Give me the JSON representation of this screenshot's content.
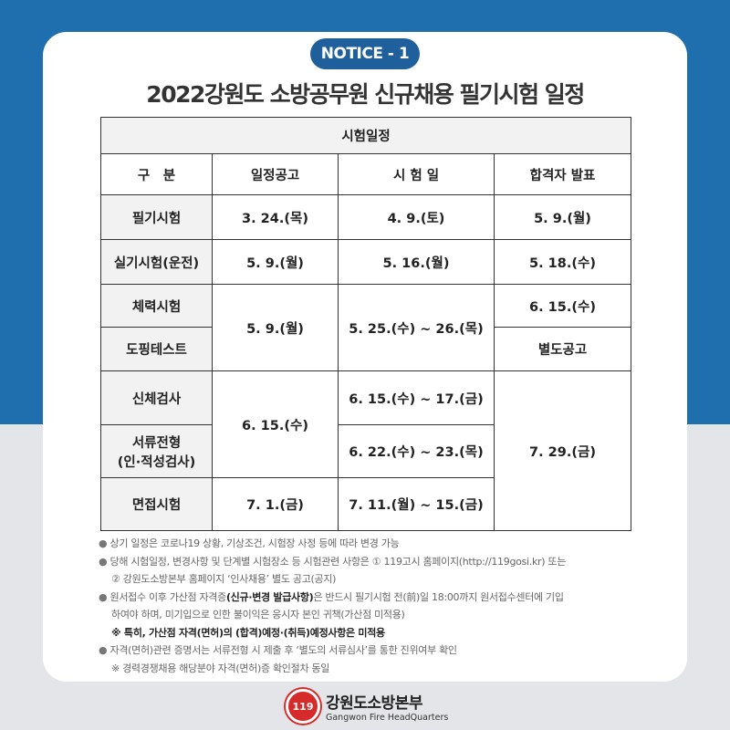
{
  "badge": "NOTICE - 1",
  "title": "2022강원도 소방공무원 신규채용 필기시험 일정",
  "table": {
    "caption": "시험일정",
    "headers": [
      "구　분",
      "일정공고",
      "시 험 일",
      "합격자 발표"
    ],
    "rows": {
      "written": [
        "필기시험",
        "3. 24.(목)",
        "4. 9.(토)",
        "5. 9.(월)"
      ],
      "practical": [
        "실기시험(운전)",
        "5. 9.(월)",
        "5. 16.(월)",
        "5. 18.(수)"
      ],
      "fitness": [
        "체력시험",
        "5. 9.(월)",
        "5. 25.(수) ~ 26.(목)",
        "6. 15.(수)"
      ],
      "doping": [
        "도핑테스트",
        "별도공고"
      ],
      "physical": [
        "신체검사",
        "6. 15.(수)",
        "6. 15.(수) ~ 17.(금)",
        "7. 29.(금)"
      ],
      "documents": [
        "서류전형",
        "(인·적성검사)",
        "6. 22.(수) ~ 23.(목)"
      ],
      "interview": [
        "면접시험",
        "7. 1.(금)",
        "7. 11.(월) ~ 15.(금)"
      ]
    }
  },
  "notes": {
    "n1": "상기 일정은 코로나19 상황, 기상조건, 시험장 사정 등에 따라 변경 가능",
    "n2": "당해 시험일정, 변경사항 및 단계별 시험장소 등 시험관련 사항은 ① 119고시 홈페이지(http://119gosi.kr) 또는",
    "n2b": "② 강원도소방본부 홈페이지 ‘인사채용’ 별도 공고(공지)",
    "n3a": "원서접수 이후 가산점 자격증",
    "n3bold": "(신규·변경 발급사항)",
    "n3b": "은 반드시 필기시험 전(前)일 18:00까지 원서접수센터에 기입",
    "n3c": "하여야 하며, 미기입으로 인한 불이익은 응시자 본인 귀책(가산점 미적용)",
    "n3d": "※ 특히, 가산점 자격(면허)의 (합격)예정·(취득)예정사항은 미적용",
    "n4": "자격(면허)관련 증명서는 서류전형 시 제출 후 ‘별도의 서류심사’를 통한 진위여부 확인",
    "n4b": "※ 경력경쟁채용 해당분야 자격(면허)증 확인절차 동일",
    "bullet": "●"
  },
  "footer": {
    "org": "강원도소방본부",
    "org_en": "Gangwon Fire HeadQuarters",
    "emblem": "119"
  }
}
